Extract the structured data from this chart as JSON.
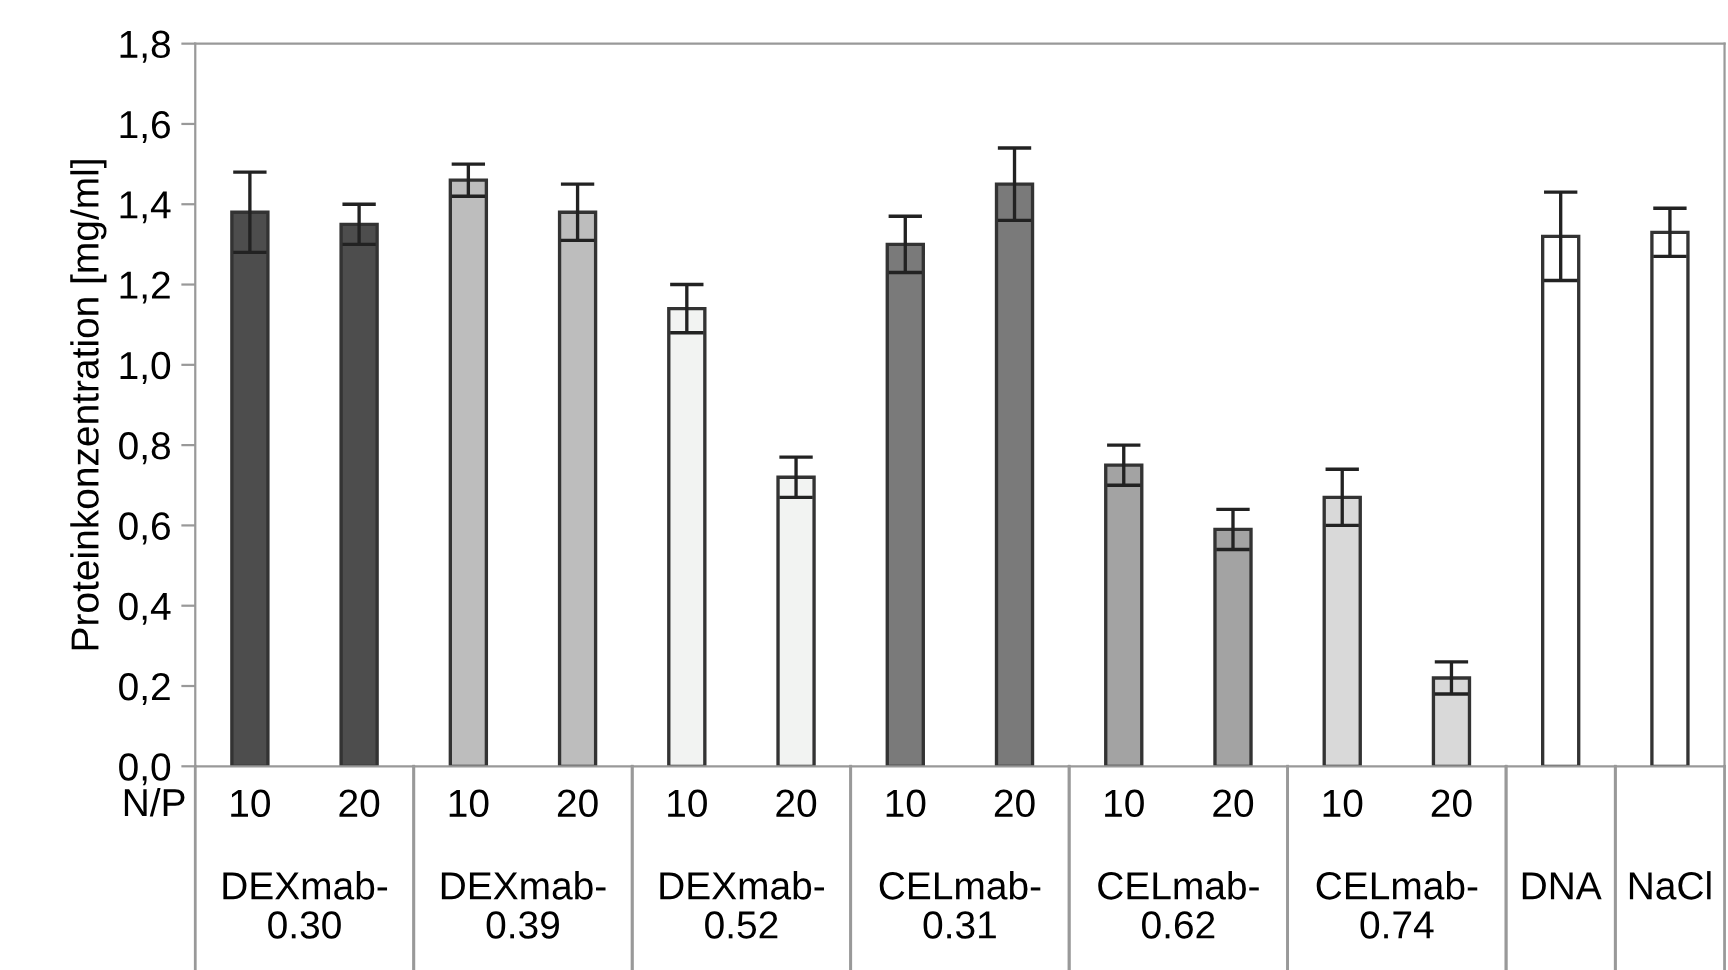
{
  "chart_data": {
    "type": "bar",
    "ylabel": "Proteinkonzentration [mg/ml]",
    "categories": [
      "10",
      "20",
      "10",
      "20",
      "10",
      "20",
      "10",
      "20",
      "10",
      "20",
      "10",
      "20",
      null,
      null
    ],
    "values": [
      1.38,
      1.35,
      1.46,
      1.38,
      1.14,
      0.72,
      1.3,
      1.45,
      0.75,
      0.59,
      0.67,
      0.22,
      1.32,
      1.33
    ],
    "errors": [
      0.1,
      0.05,
      0.04,
      0.07,
      0.06,
      0.05,
      0.07,
      0.09,
      0.05,
      0.05,
      0.07,
      0.04,
      0.11,
      0.06
    ],
    "colors": [
      "#4d4d4d",
      "#4d4d4d",
      "#bdbdbd",
      "#bdbdbd",
      "#f2f3f2",
      "#f2f3f2",
      "#7a7a7a",
      "#7a7a7a",
      "#a3a3a3",
      "#a3a3a3",
      "#d9d9d9",
      "#d9d9d9",
      "#ffffff",
      "#ffffff"
    ],
    "ylim": [
      0,
      1.8
    ],
    "yticks": [
      {
        "value": 0,
        "label": "0,0"
      },
      {
        "value": 0.2,
        "label": "0,2"
      },
      {
        "value": 0.4,
        "label": "0,4"
      },
      {
        "value": 0.6,
        "label": "0,6"
      },
      {
        "value": 0.8,
        "label": "0,8"
      },
      {
        "value": 1.0,
        "label": "1,0"
      },
      {
        "value": 1.2,
        "label": "1,2"
      },
      {
        "value": 1.4,
        "label": "1,4"
      },
      {
        "value": 1.6,
        "label": "1,6"
      },
      {
        "value": 1.8,
        "label": "1,8"
      }
    ],
    "annotations": [
      "N/P",
      "DEXmab-\n0.30",
      "DEXmab-\n0.39",
      "DEXmab-\n0.52",
      "CELmab-\n0.31",
      "CELmab-\n0.62",
      "CELmab-\n0.74",
      "DNA",
      "NaCl"
    ],
    "grid": false,
    "legend": false
  }
}
